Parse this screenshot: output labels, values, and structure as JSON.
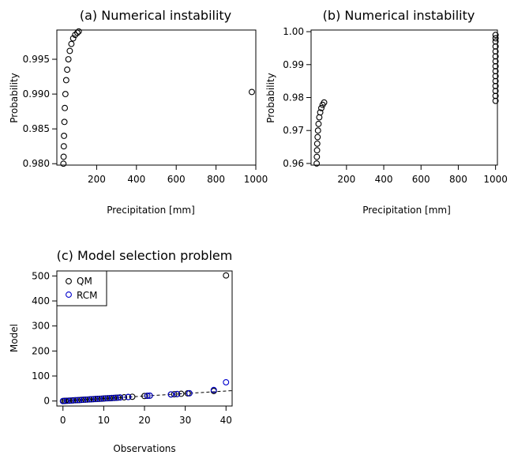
{
  "chart_data": [
    {
      "panel": "a",
      "type": "scatter",
      "title": "(a) Numerical instability",
      "xlabel": "Precipitation [mm]",
      "ylabel": "Probability",
      "xlim": [
        0,
        1000
      ],
      "ylim": [
        0.9798,
        0.9992
      ],
      "xticks": [
        "200",
        "400",
        "600",
        "800",
        "1000"
      ],
      "yticks": [
        "0.980",
        "0.985",
        "0.990",
        "0.995"
      ],
      "grid": false,
      "color": "#000000",
      "series": [
        {
          "x": [
            33,
            34,
            35,
            36,
            38,
            40,
            43,
            47,
            52,
            58,
            65,
            73,
            82,
            92,
            103,
            110
          ],
          "y": [
            0.98,
            0.981,
            0.9825,
            0.984,
            0.986,
            0.988,
            0.99,
            0.992,
            0.9935,
            0.995,
            0.9962,
            0.9972,
            0.998,
            0.9985,
            0.9988,
            0.999
          ]
        },
        {
          "x": [
            980
          ],
          "y": [
            0.9903
          ]
        }
      ]
    },
    {
      "panel": "b",
      "type": "scatter",
      "title": "(b) Numerical instability",
      "xlabel": "Precipitation [mm]",
      "ylabel": "Probability",
      "xlim": [
        10,
        1010
      ],
      "ylim": [
        0.9595,
        1.0005
      ],
      "xticks": [
        "200",
        "400",
        "600",
        "800",
        "1000"
      ],
      "yticks": [
        "0.96",
        "0.97",
        "0.98",
        "0.99",
        "1.00"
      ],
      "grid": false,
      "color": "#000000",
      "series": [
        {
          "x": [
            40,
            41,
            42,
            43,
            45,
            47,
            50,
            54,
            59,
            65,
            72,
            80
          ],
          "y": [
            0.96,
            0.962,
            0.964,
            0.966,
            0.968,
            0.97,
            0.972,
            0.974,
            0.9755,
            0.9768,
            0.9778,
            0.9785
          ]
        },
        {
          "x": [
            1000,
            1000,
            1000,
            1000,
            1000,
            1000,
            1000,
            1000,
            1000,
            1000,
            1000,
            1000,
            1000,
            1000,
            1000
          ],
          "y": [
            0.979,
            0.9805,
            0.982,
            0.9835,
            0.985,
            0.9865,
            0.988,
            0.9895,
            0.991,
            0.9925,
            0.994,
            0.9955,
            0.997,
            0.998,
            0.999
          ]
        }
      ]
    },
    {
      "panel": "c",
      "type": "scatter",
      "title": "(c) Model selection problem",
      "xlabel": "Observations",
      "ylabel": "Model",
      "xlim": [
        -1.5,
        41.5
      ],
      "ylim": [
        -20,
        520
      ],
      "xticks": [
        "0",
        "10",
        "20",
        "30",
        "40"
      ],
      "yticks": [
        "0",
        "100",
        "200",
        "300",
        "400",
        "500"
      ],
      "grid": false,
      "legend_position": "top-left",
      "reference_line": {
        "style": "dashed",
        "x": [
          0,
          41.5
        ],
        "y": [
          0,
          41.5
        ]
      },
      "series": [
        {
          "name": "QM",
          "color": "#000000",
          "x": [
            0,
            0.3,
            0.6,
            1,
            1.5,
            2,
            2.5,
            3,
            3.5,
            4,
            4.5,
            5,
            5.5,
            6,
            6.5,
            7,
            7.5,
            8,
            8.5,
            9,
            9.5,
            10,
            10.5,
            11,
            11.5,
            12,
            12.5,
            13,
            13.5,
            14,
            15,
            16,
            17,
            20,
            20.7,
            21.3,
            26.5,
            27.3,
            28,
            29,
            30.6,
            31,
            37,
            40
          ],
          "y": [
            0,
            0.3,
            0.6,
            1,
            1.5,
            2,
            2.5,
            3,
            3.5,
            4,
            4.5,
            5,
            5.5,
            6,
            6.5,
            7,
            7.5,
            8,
            8.5,
            9,
            9.5,
            10,
            10.5,
            11,
            11.5,
            12,
            12.5,
            13,
            13.5,
            14,
            15,
            16,
            17,
            20,
            20.7,
            21.3,
            26.5,
            27.3,
            28,
            29,
            30.6,
            31,
            40,
            502
          ]
        },
        {
          "name": "RCM",
          "color": "#0000cc",
          "x": [
            0,
            1,
            2,
            3,
            4,
            5,
            6,
            7,
            8,
            9,
            10,
            11,
            12,
            13,
            14,
            16,
            20.7,
            21.3,
            26.5,
            28,
            31,
            37,
            40
          ],
          "y": [
            0,
            1,
            2,
            3,
            4,
            5,
            6,
            7,
            8,
            9,
            10,
            11,
            12,
            13,
            14,
            16,
            21,
            21.5,
            26.5,
            28,
            31,
            44,
            75
          ]
        }
      ]
    }
  ]
}
